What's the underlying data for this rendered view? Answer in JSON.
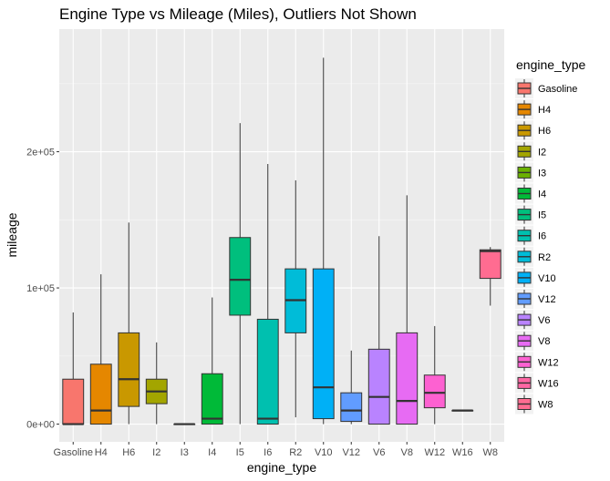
{
  "chart_data": {
    "type": "box",
    "title": "Engine Type vs Mileage (Miles), Outliers Not Shown",
    "xlabel": "engine_type",
    "ylabel": "mileage",
    "ylim": [
      -13000,
      290000
    ],
    "yticks": [
      {
        "value": 0,
        "label": "0e+00"
      },
      {
        "value": 100000,
        "label": "1e+05"
      },
      {
        "value": 200000,
        "label": "2e+05"
      }
    ],
    "grid": true,
    "legend": {
      "title": "engine_type",
      "position": "right"
    },
    "categories": [
      "Gasoline",
      "H4",
      "H6",
      "I2",
      "I3",
      "I4",
      "I5",
      "I6",
      "R2",
      "V10",
      "V12",
      "V6",
      "V8",
      "W12",
      "W16",
      "W8"
    ],
    "colors": [
      "#F8766D",
      "#E58700",
      "#C99800",
      "#A3A500",
      "#6BB100",
      "#00BA38",
      "#00BF7D",
      "#00C0AF",
      "#00BCD8",
      "#00B0F6",
      "#619CFF",
      "#B983FF",
      "#E76BF3",
      "#FD61D1",
      "#FF67A4",
      "#FF6C91"
    ],
    "series": [
      {
        "name": "Gasoline",
        "whisker_low": 0,
        "q1": 0,
        "median": 0,
        "q3": 33000,
        "whisker_high": 82000
      },
      {
        "name": "H4",
        "whisker_low": 0,
        "q1": 0,
        "median": 10000,
        "q3": 44000,
        "whisker_high": 110000
      },
      {
        "name": "H6",
        "whisker_low": 0,
        "q1": 13000,
        "median": 33000,
        "q3": 67000,
        "whisker_high": 148000
      },
      {
        "name": "I2",
        "whisker_low": 0,
        "q1": 15000,
        "median": 24000,
        "q3": 33000,
        "whisker_high": 60000
      },
      {
        "name": "I3",
        "whisker_low": 0,
        "q1": 0,
        "median": 0,
        "q3": 0,
        "whisker_high": 0
      },
      {
        "name": "I4",
        "whisker_low": 0,
        "q1": 0,
        "median": 4000,
        "q3": 37000,
        "whisker_high": 93000
      },
      {
        "name": "I5",
        "whisker_low": 0,
        "q1": 80000,
        "median": 106000,
        "q3": 137000,
        "whisker_high": 221000
      },
      {
        "name": "I6",
        "whisker_low": 0,
        "q1": 0,
        "median": 4000,
        "q3": 77000,
        "whisker_high": 191000
      },
      {
        "name": "R2",
        "whisker_low": 5000,
        "q1": 67000,
        "median": 91000,
        "q3": 114000,
        "whisker_high": 179000
      },
      {
        "name": "V10",
        "whisker_low": 0,
        "q1": 4000,
        "median": 27000,
        "q3": 114000,
        "whisker_high": 269000
      },
      {
        "name": "V12",
        "whisker_low": 0,
        "q1": 2000,
        "median": 10000,
        "q3": 23000,
        "whisker_high": 54000
      },
      {
        "name": "V6",
        "whisker_low": 0,
        "q1": 0,
        "median": 20000,
        "q3": 55000,
        "whisker_high": 138000
      },
      {
        "name": "V8",
        "whisker_low": 0,
        "q1": 0,
        "median": 17000,
        "q3": 67000,
        "whisker_high": 168000
      },
      {
        "name": "W12",
        "whisker_low": 0,
        "q1": 12000,
        "median": 23000,
        "q3": 36000,
        "whisker_high": 72000
      },
      {
        "name": "W16",
        "whisker_low": 10000,
        "q1": 10000,
        "median": 10000,
        "q3": 10000,
        "whisker_high": 10000
      },
      {
        "name": "W8",
        "whisker_low": 87000,
        "q1": 107000,
        "median": 127000,
        "q3": 128000,
        "whisker_high": 130000
      }
    ]
  }
}
